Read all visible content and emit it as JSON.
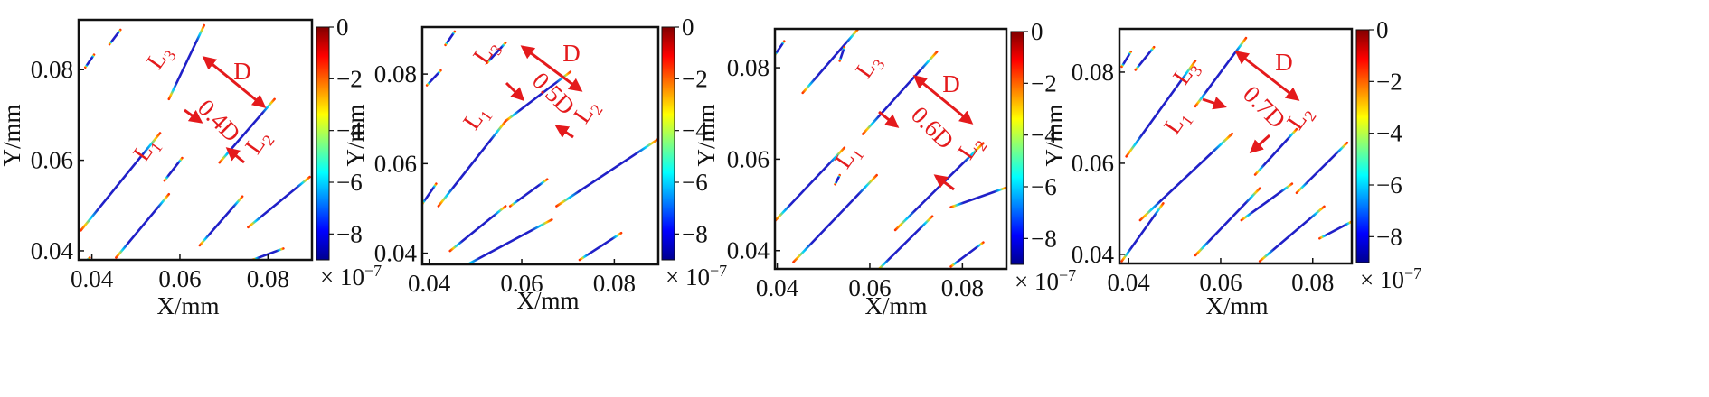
{
  "chart_data": [
    {
      "type": "contour",
      "xlabel": "X/mm",
      "ylabel": "Y/mm",
      "xlim": [
        0.037,
        0.09
      ],
      "ylim": [
        0.038,
        0.091
      ],
      "xticks": [
        "0.04",
        "0.06",
        "0.08"
      ],
      "yticks": [
        "0.04",
        "0.06",
        "0.08"
      ],
      "colorbar": {
        "ticks": [
          "0",
          "−2",
          "−4",
          "−6",
          "−8"
        ],
        "values": [
          0,
          -2,
          -4,
          -6,
          -8
        ],
        "min": -9,
        "max": 0,
        "exponent_label": "× 10",
        "exponent": "−7"
      },
      "spacing_label": "0.4D",
      "annotations": {
        "l1": "L",
        "l1_sub": "1",
        "l2": "L",
        "l2_sub": "2",
        "l3": "L",
        "l3_sub": "3",
        "d": "D"
      },
      "cracks": [
        {
          "x0": 0.0385,
          "y0": 0.0805,
          "x1": 0.0405,
          "y1": 0.0833
        },
        {
          "x0": 0.044,
          "y0": 0.0856,
          "x1": 0.0465,
          "y1": 0.0888
        },
        {
          "x0": 0.0375,
          "y0": 0.0445,
          "x1": 0.0555,
          "y1": 0.066
        },
        {
          "x0": 0.0455,
          "y0": 0.0385,
          "x1": 0.0575,
          "y1": 0.0525
        },
        {
          "x0": 0.0565,
          "y0": 0.0555,
          "x1": 0.0605,
          "y1": 0.0605
        },
        {
          "x0": 0.0575,
          "y0": 0.0735,
          "x1": 0.0655,
          "y1": 0.0898
        },
        {
          "x0": 0.069,
          "y0": 0.0595,
          "x1": 0.0815,
          "y1": 0.0735
        },
        {
          "x0": 0.0645,
          "y0": 0.0412,
          "x1": 0.0742,
          "y1": 0.052
        },
        {
          "x0": 0.0755,
          "y0": 0.0452,
          "x1": 0.0895,
          "y1": 0.0563
        },
        {
          "x0": 0.0765,
          "y0": 0.038,
          "x1": 0.0835,
          "y1": 0.0405
        },
        {
          "x0": 0.0365,
          "y0": 0.0355,
          "x1": 0.0395,
          "y1": 0.0385
        }
      ]
    },
    {
      "type": "contour",
      "xlabel": "X/mm",
      "ylabel": "Y/mm",
      "xlim": [
        0.0385,
        0.0895
      ],
      "ylim": [
        0.0375,
        0.0905
      ],
      "xticks": [
        "0.04",
        "0.06",
        "0.08"
      ],
      "yticks": [
        "0.04",
        "0.06",
        "0.08"
      ],
      "colorbar": {
        "ticks": [
          "0",
          "−2",
          "−4",
          "−6",
          "−8"
        ],
        "values": [
          0,
          -2,
          -4,
          -6,
          -8
        ],
        "min": -9,
        "max": 0,
        "exponent_label": "× 10",
        "exponent": "−7"
      },
      "spacing_label": "0.5D",
      "annotations": {
        "l1": "L",
        "l1_sub": "1",
        "l2": "L",
        "l2_sub": "2",
        "l3": "L",
        "l3_sub": "3",
        "d": "D"
      },
      "cracks": [
        {
          "x0": 0.0395,
          "y0": 0.0775,
          "x1": 0.0425,
          "y1": 0.0808
        },
        {
          "x0": 0.0435,
          "y0": 0.0865,
          "x1": 0.0455,
          "y1": 0.0895
        },
        {
          "x0": 0.0385,
          "y0": 0.051,
          "x1": 0.0415,
          "y1": 0.0555
        },
        {
          "x0": 0.042,
          "y0": 0.0505,
          "x1": 0.0565,
          "y1": 0.0695
        },
        {
          "x0": 0.0525,
          "y0": 0.0825,
          "x1": 0.0565,
          "y1": 0.087
        },
        {
          "x0": 0.0445,
          "y0": 0.0405,
          "x1": 0.0565,
          "y1": 0.0505
        },
        {
          "x0": 0.0575,
          "y0": 0.0505,
          "x1": 0.0655,
          "y1": 0.0565
        },
        {
          "x0": 0.0565,
          "y0": 0.0695,
          "x1": 0.0705,
          "y1": 0.0805
        },
        {
          "x0": 0.0675,
          "y0": 0.0505,
          "x1": 0.0895,
          "y1": 0.0655
        },
        {
          "x0": 0.0465,
          "y0": 0.0365,
          "x1": 0.0665,
          "y1": 0.0475
        },
        {
          "x0": 0.0725,
          "y0": 0.0385,
          "x1": 0.0815,
          "y1": 0.0445
        }
      ]
    },
    {
      "type": "contour",
      "xlabel": "X/mm",
      "ylabel": "Y/mm",
      "xlim": [
        0.0395,
        0.0895
      ],
      "ylim": [
        0.036,
        0.0885
      ],
      "xticks": [
        "0.04",
        "0.06",
        "0.08"
      ],
      "yticks": [
        "0.04",
        "0.06",
        "0.08"
      ],
      "colorbar": {
        "ticks": [
          "0",
          "−2",
          "−4",
          "−6",
          "−8"
        ],
        "values": [
          0,
          -2,
          -4,
          -6,
          -8
        ],
        "min": -9,
        "max": 0,
        "exponent_label": "× 10",
        "exponent": "−7"
      },
      "spacing_label": "0.6D",
      "annotations": {
        "l1": "L",
        "l1_sub": "1",
        "l2": "L",
        "l2_sub": "2",
        "l3": "L",
        "l3_sub": "3",
        "d": "D"
      },
      "cracks": [
        {
          "x0": 0.0395,
          "y0": 0.0828,
          "x1": 0.0415,
          "y1": 0.0858
        },
        {
          "x0": 0.0455,
          "y0": 0.0745,
          "x1": 0.0575,
          "y1": 0.0885
        },
        {
          "x0": 0.0535,
          "y0": 0.0815,
          "x1": 0.0545,
          "y1": 0.0845
        },
        {
          "x0": 0.0395,
          "y0": 0.0465,
          "x1": 0.0545,
          "y1": 0.0625
        },
        {
          "x0": 0.0525,
          "y0": 0.0545,
          "x1": 0.0535,
          "y1": 0.0565
        },
        {
          "x0": 0.0585,
          "y0": 0.0655,
          "x1": 0.0745,
          "y1": 0.0835
        },
        {
          "x0": 0.0435,
          "y0": 0.0375,
          "x1": 0.0615,
          "y1": 0.0565
        },
        {
          "x0": 0.0655,
          "y0": 0.0445,
          "x1": 0.0845,
          "y1": 0.0635
        },
        {
          "x0": 0.0775,
          "y0": 0.0495,
          "x1": 0.0895,
          "y1": 0.0538
        },
        {
          "x0": 0.0615,
          "y0": 0.0355,
          "x1": 0.0735,
          "y1": 0.0475
        },
        {
          "x0": 0.0775,
          "y0": 0.0365,
          "x1": 0.0845,
          "y1": 0.0418
        }
      ]
    },
    {
      "type": "contour",
      "xlabel": "X/mm",
      "ylabel": "Y/mm",
      "xlim": [
        0.038,
        0.0885
      ],
      "ylim": [
        0.038,
        0.0895
      ],
      "xticks": [
        "0.04",
        "0.06",
        "0.08"
      ],
      "yticks": [
        "0.04",
        "0.06",
        "0.08"
      ],
      "colorbar": {
        "ticks": [
          "0",
          "−2",
          "−4",
          "−6",
          "−8"
        ],
        "values": [
          0,
          -2,
          -4,
          -6,
          -8
        ],
        "min": -9,
        "max": 0,
        "exponent_label": "× 10",
        "exponent": "−7"
      },
      "spacing_label": "0.7D",
      "annotations": {
        "l1": "L",
        "l1_sub": "1",
        "l2": "L",
        "l2_sub": "2",
        "l3": "L",
        "l3_sub": "3",
        "d": "D"
      },
      "cracks": [
        {
          "x0": 0.0385,
          "y0": 0.0812,
          "x1": 0.0405,
          "y1": 0.0845
        },
        {
          "x0": 0.0415,
          "y0": 0.0805,
          "x1": 0.0455,
          "y1": 0.0855
        },
        {
          "x0": 0.0395,
          "y0": 0.0615,
          "x1": 0.0545,
          "y1": 0.0825
        },
        {
          "x0": 0.0545,
          "y0": 0.0725,
          "x1": 0.0655,
          "y1": 0.0875
        },
        {
          "x0": 0.0385,
          "y0": 0.0385,
          "x1": 0.0475,
          "y1": 0.0512
        },
        {
          "x0": 0.0425,
          "y0": 0.0475,
          "x1": 0.0625,
          "y1": 0.0665
        },
        {
          "x0": 0.0545,
          "y0": 0.0398,
          "x1": 0.0685,
          "y1": 0.0545
        },
        {
          "x0": 0.0645,
          "y0": 0.0475,
          "x1": 0.0755,
          "y1": 0.0555
        },
        {
          "x0": 0.0675,
          "y0": 0.0575,
          "x1": 0.0765,
          "y1": 0.0675
        },
        {
          "x0": 0.0685,
          "y0": 0.0385,
          "x1": 0.0825,
          "y1": 0.0505
        },
        {
          "x0": 0.0765,
          "y0": 0.0535,
          "x1": 0.0875,
          "y1": 0.0645
        },
        {
          "x0": 0.0815,
          "y0": 0.0435,
          "x1": 0.0885,
          "y1": 0.0472
        }
      ]
    }
  ]
}
